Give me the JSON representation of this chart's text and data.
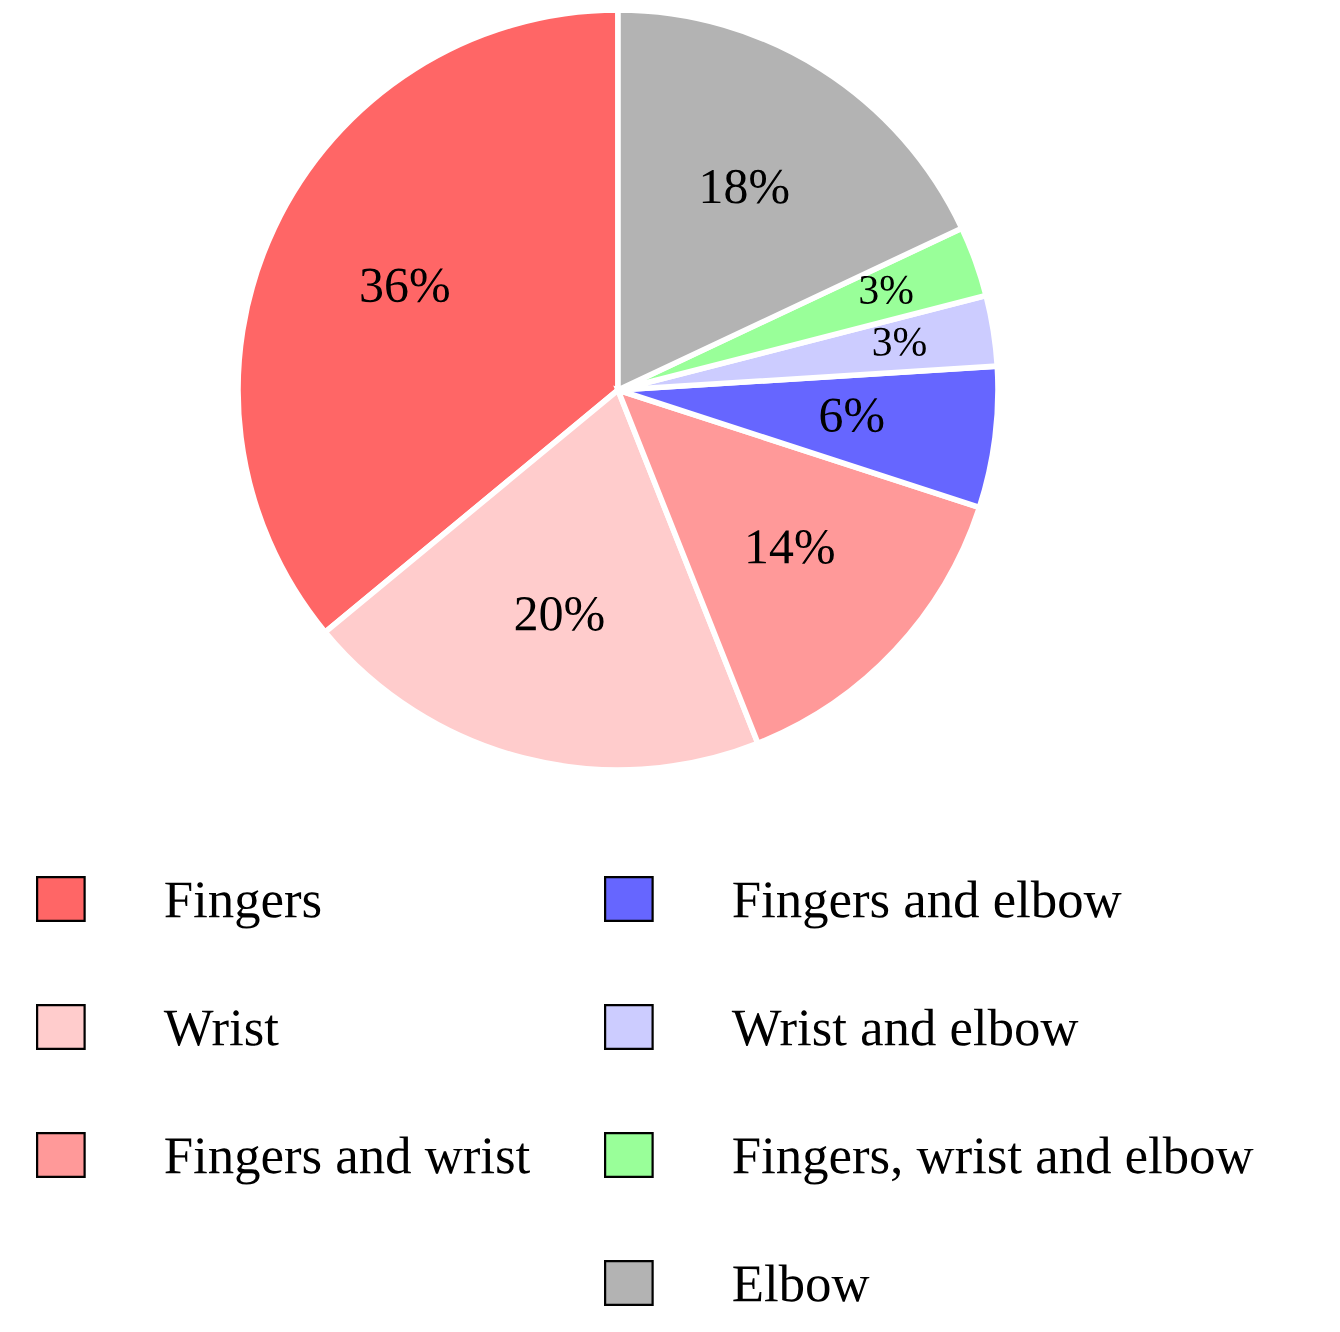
{
  "chart_data": {
    "type": "pie",
    "categories": [
      "Fingers",
      "Wrist",
      "Fingers and wrist",
      "Fingers and elbow",
      "Wrist and elbow",
      "Fingers, wrist and elbow",
      "Elbow"
    ],
    "values": [
      36,
      20,
      14,
      6,
      3,
      3,
      18
    ],
    "value_labels": [
      "36%",
      "20%",
      "14%",
      "6%",
      "3%",
      "3%",
      "18%"
    ],
    "colors": [
      "#ff6666",
      "#ffcccc",
      "#ff9999",
      "#6666ff",
      "#ccccff",
      "#99ff99",
      "#b3b3b3"
    ],
    "legend": "bottom"
  }
}
